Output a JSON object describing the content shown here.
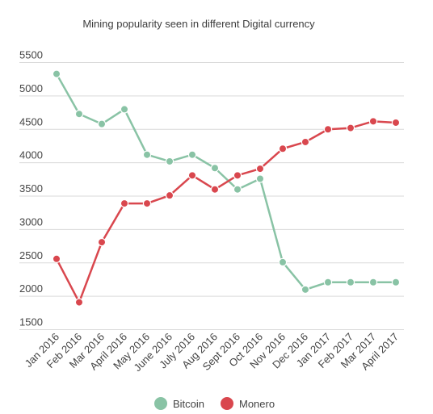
{
  "chart_data": {
    "type": "line",
    "title": "Mining popularity seen in different Digital currency",
    "xlabel": "",
    "ylabel": "",
    "categories": [
      "Jan 2016",
      "Feb 2016",
      "Mar 2016",
      "April 2016",
      "May 2016",
      "June 2016",
      "July 2016",
      "Aug 2016",
      "Sept 2016",
      "Oct 2016",
      "Nov 2016",
      "Dec 2016",
      "Jan 2017",
      "Feb 2017",
      "Mar 2017",
      "April 2017"
    ],
    "ylim": [
      1500,
      5500
    ],
    "yticks": [
      5500,
      5000,
      4500,
      4000,
      3500,
      3000,
      2500,
      2000,
      1500
    ],
    "grid": true,
    "legend": "bottom",
    "series": [
      {
        "name": "Bitcoin",
        "color": "#89c3a5",
        "values": [
          5330,
          4730,
          4580,
          4800,
          4120,
          4020,
          4120,
          3920,
          3600,
          3760,
          2510,
          2100,
          2210,
          2210,
          2210,
          2210
        ]
      },
      {
        "name": "Monero",
        "color": "#d9474e",
        "values": [
          2560,
          1910,
          2810,
          3390,
          3390,
          3510,
          3810,
          3600,
          3810,
          3910,
          4210,
          4310,
          4500,
          4520,
          4620,
          4600
        ]
      }
    ]
  }
}
